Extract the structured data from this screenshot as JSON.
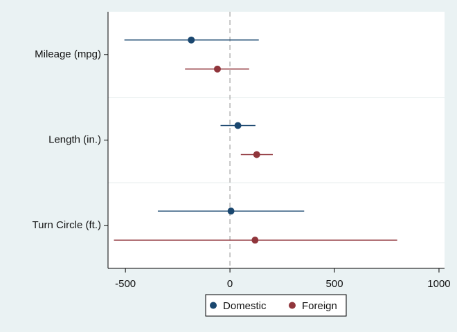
{
  "chart_data": {
    "type": "scatter",
    "subtype": "coefficient-plot-with-confidence-intervals",
    "categories": [
      "Mileage (mpg)",
      "Length (in.)",
      "Turn Circle (ft.)"
    ],
    "xlim": [
      -580,
      1010
    ],
    "xticks": [
      -500,
      0,
      500,
      1000
    ],
    "reference_line_x": 0,
    "grid": "horizontal separators between categories",
    "legend_position": "bottom",
    "series": [
      {
        "name": "Domestic",
        "color": "#1a476f",
        "points": [
          {
            "category": "Mileage (mpg)",
            "estimate": -185,
            "lower": -505,
            "upper": 138
          },
          {
            "category": "Length (in.)",
            "estimate": 38,
            "lower": -45,
            "upper": 122
          },
          {
            "category": "Turn Circle (ft.)",
            "estimate": 5,
            "lower": -345,
            "upper": 355
          }
        ]
      },
      {
        "name": "Foreign",
        "color": "#90353b",
        "points": [
          {
            "category": "Mileage (mpg)",
            "estimate": -60,
            "lower": -215,
            "upper": 92
          },
          {
            "category": "Length (in.)",
            "estimate": 128,
            "lower": 52,
            "upper": 205
          },
          {
            "category": "Turn Circle (ft.)",
            "estimate": 120,
            "lower": -555,
            "upper": 800
          }
        ]
      }
    ]
  }
}
